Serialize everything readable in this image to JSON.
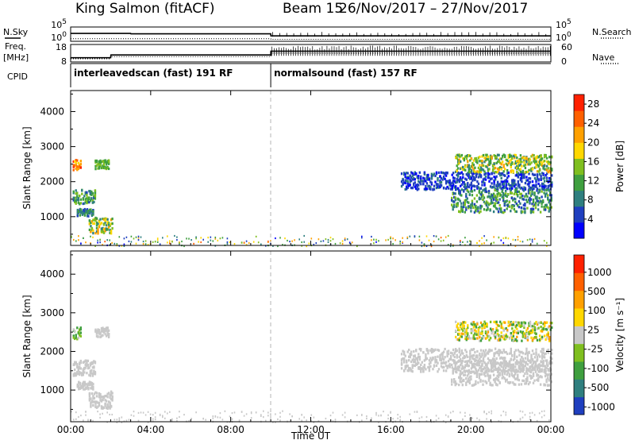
{
  "header": {
    "station": "King Salmon (fitACF)",
    "beam": "Beam 15",
    "date_range": "26/Nov/2017 – 27/Nov/2017"
  },
  "colors": {
    "background": "#ffffff",
    "axis": "#000000",
    "mode_divider": "#b4b4b4"
  },
  "chart_data": [
    {
      "type": "line",
      "panel": "noise",
      "left_label": "N.Sky",
      "right_label": "N.Search",
      "y_ticks_left": [
        "10^5",
        "10^0"
      ],
      "y_ticks_right": [
        "10^5",
        "10^0"
      ],
      "series": [
        {
          "name": "N.Sky",
          "style": "solid",
          "x_hours": [
            0,
            3,
            3.01,
            10,
            10.01,
            24
          ],
          "y_frac": [
            0.55,
            0.55,
            0.52,
            0.52,
            0.38,
            0.38
          ]
        },
        {
          "name": "N.Search",
          "style": "dotted",
          "x_hours": [
            0,
            10,
            10.01,
            24
          ],
          "y_frac": [
            0.18,
            0.18,
            0.14,
            0.14
          ]
        }
      ]
    },
    {
      "type": "line",
      "panel": "frequency",
      "left_label": "Freq.",
      "left_unit": "[MHz]",
      "right_label": "Nave",
      "y_ticks_left": [
        "18",
        "8"
      ],
      "y_ticks_right": [
        "60",
        "0"
      ],
      "series": [
        {
          "name": "Freq",
          "style": "solid",
          "x_hours": [
            0,
            2,
            2.01,
            10,
            10.01,
            24
          ],
          "y_frac": [
            0.24,
            0.24,
            0.4,
            0.4,
            0.62,
            0.62
          ]
        },
        {
          "name": "Nave",
          "style": "dotted",
          "x_hours": [
            0,
            2,
            2.01,
            10,
            10.01,
            24
          ],
          "y_frac": [
            0.18,
            0.18,
            0.3,
            0.3,
            0.5,
            0.5
          ]
        }
      ]
    },
    {
      "type": "table",
      "panel": "cpid",
      "label": "CPID",
      "segments": [
        {
          "start_hour": 0,
          "end_hour": 10,
          "text": "interleavedscan (fast) 191 RF"
        },
        {
          "start_hour": 10,
          "end_hour": 24,
          "text": "normalsound (fast) 157 RF"
        }
      ]
    },
    {
      "type": "heatmap",
      "panel": "power",
      "ylabel": "Slant Range [km]",
      "ylim": [
        180,
        4600
      ],
      "yticks": [
        1000,
        2000,
        3000,
        4000
      ],
      "xlim": [
        0,
        24
      ],
      "colorbar_label": "Power [dB]",
      "colorbar_ticks": [
        "4",
        "8",
        "12",
        "16",
        "20",
        "24",
        "28"
      ],
      "colorbar_range": [
        0,
        30
      ],
      "colormap": [
        "#0000ff",
        "#1f3fbf",
        "#2f7f7f",
        "#3f9f3f",
        "#7fbf1f",
        "#ffd700",
        "#ffa000",
        "#ff6000",
        "#ff2000"
      ],
      "regions": [
        {
          "x": [
            0.1,
            0.5
          ],
          "r": [
            2350,
            2650
          ],
          "v": [
            18,
            28
          ]
        },
        {
          "x": [
            0.1,
            1.2
          ],
          "r": [
            1400,
            1800
          ],
          "v": [
            6,
            16
          ]
        },
        {
          "x": [
            0.3,
            1.1
          ],
          "r": [
            1050,
            1250
          ],
          "v": [
            4,
            12
          ]
        },
        {
          "x": [
            0.9,
            2.1
          ],
          "r": [
            550,
            1000
          ],
          "v": [
            8,
            22
          ]
        },
        {
          "x": [
            1.2,
            1.9
          ],
          "r": [
            2400,
            2650
          ],
          "v": [
            10,
            16
          ]
        },
        {
          "x": [
            16.5,
            24
          ],
          "r": [
            1800,
            2300
          ],
          "v": [
            2,
            8
          ]
        },
        {
          "x": [
            19,
            24
          ],
          "r": [
            1150,
            1800
          ],
          "v": [
            4,
            16
          ]
        },
        {
          "x": [
            19.2,
            24
          ],
          "r": [
            2300,
            2800
          ],
          "v": [
            8,
            22
          ]
        },
        {
          "x": [
            0,
            24
          ],
          "r": [
            180,
            480
          ],
          "v": [
            2,
            24
          ]
        }
      ]
    },
    {
      "type": "heatmap",
      "panel": "velocity",
      "ylabel": "Slant Range [km]",
      "ylim": [
        180,
        4600
      ],
      "yticks": [
        1000,
        2000,
        3000,
        4000
      ],
      "xlim": [
        0,
        24
      ],
      "xlabel": "Time UT",
      "xticks": [
        "00:00",
        "04:00",
        "08:00",
        "12:00",
        "16:00",
        "20:00",
        "00:00"
      ],
      "xtick_hours": [
        0,
        4,
        8,
        12,
        16,
        20,
        24
      ],
      "colorbar_label": "Velocity [m s⁻¹]",
      "colorbar_ticks": [
        "1000",
        "500",
        "100",
        "25",
        "-25",
        "-100",
        "-500",
        "-1000"
      ],
      "colorbar_range": [
        -1000,
        1000
      ],
      "colormap": [
        "#1f3fbf",
        "#2f7f7f",
        "#3f9f3f",
        "#7fbf1f",
        "#c8c8c8",
        "#ffd700",
        "#ffa000",
        "#ff6000",
        "#ff2000"
      ],
      "regions": [
        {
          "x": [
            0.1,
            0.5
          ],
          "r": [
            2350,
            2650
          ],
          "v": [
            -500,
            100
          ]
        },
        {
          "x": [
            0.1,
            1.2
          ],
          "r": [
            1400,
            1800
          ],
          "v": [
            -25,
            25
          ]
        },
        {
          "x": [
            0.3,
            1.1
          ],
          "r": [
            1050,
            1250
          ],
          "v": [
            -25,
            25
          ]
        },
        {
          "x": [
            0.9,
            2.1
          ],
          "r": [
            550,
            1000
          ],
          "v": [
            -25,
            25
          ]
        },
        {
          "x": [
            1.2,
            1.9
          ],
          "r": [
            2400,
            2650
          ],
          "v": [
            -100,
            100
          ]
        },
        {
          "x": [
            16.5,
            24
          ],
          "r": [
            1500,
            2100
          ],
          "v": [
            -25,
            25
          ]
        },
        {
          "x": [
            19,
            24
          ],
          "r": [
            1150,
            1800
          ],
          "v": [
            -25,
            25
          ]
        },
        {
          "x": [
            19.2,
            24
          ],
          "r": [
            2300,
            2800
          ],
          "v": [
            -500,
            500
          ]
        },
        {
          "x": [
            0,
            24
          ],
          "r": [
            180,
            480
          ],
          "v": [
            -100,
            100
          ]
        }
      ]
    }
  ]
}
